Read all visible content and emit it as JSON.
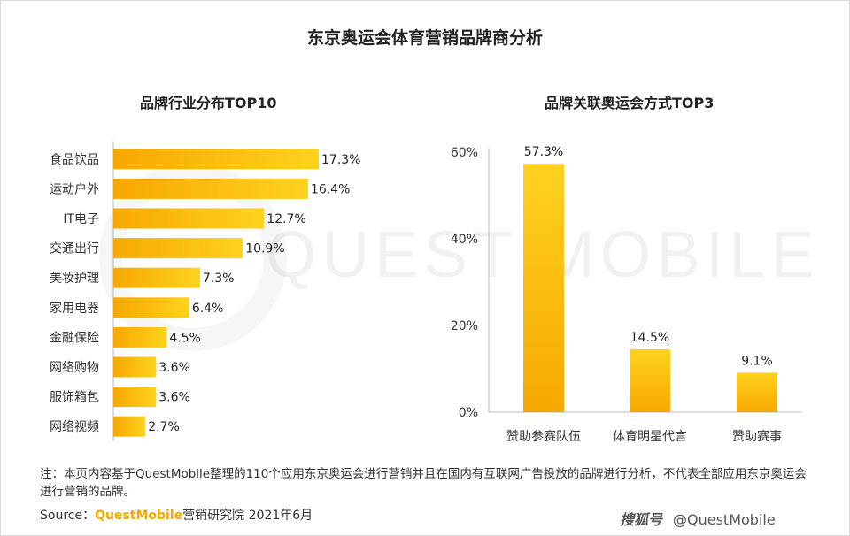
{
  "title": "东京奥运会体育营销品牌商分析",
  "chart_data": [
    {
      "type": "bar",
      "orientation": "horizontal",
      "title": "品牌行业分布TOP10",
      "categories": [
        "食品饮品",
        "运动户外",
        "IT电子",
        "交通出行",
        "美妆护理",
        "家用电器",
        "金融保险",
        "网络购物",
        "服饰箱包",
        "网络视频"
      ],
      "values": [
        17.3,
        16.4,
        12.7,
        10.9,
        7.3,
        6.4,
        4.5,
        3.6,
        3.6,
        2.7
      ],
      "value_labels": [
        "17.3%",
        "16.4%",
        "12.7%",
        "10.9%",
        "7.3%",
        "6.4%",
        "4.5%",
        "3.6%",
        "3.6%",
        "2.7%"
      ],
      "xlim": [
        0,
        20
      ],
      "grid": false
    },
    {
      "type": "bar",
      "orientation": "vertical",
      "title": "品牌关联奥运会方式TOP3",
      "categories": [
        "赞助参赛队伍",
        "体育明星代言",
        "赞助赛事"
      ],
      "values": [
        57.3,
        14.5,
        9.1
      ],
      "value_labels": [
        "57.3%",
        "14.5%",
        "9.1%"
      ],
      "ylim": [
        0,
        60
      ],
      "yticks": [
        "0%",
        "20%",
        "40%",
        "60%"
      ],
      "grid": false
    }
  ],
  "watermark": "QUEST MOBILE",
  "note": "注：本页内容基于QuestMobile整理的110个应用东京奥运会进行营销并且在国内有互联网广告投放的品牌进行分析，不代表全部应用东京奥运会进行营销的品牌。",
  "source": {
    "prefix": "Source：",
    "brand": "QuestMobile",
    "suffix": "营销研究院 2021年6月"
  },
  "credit": {
    "logo": "搜狐号",
    "handle": "@QuestMobile"
  },
  "colors": {
    "bar_light": "#ffd21f",
    "bar_dark": "#f7a800",
    "brand": "#f5a800"
  }
}
